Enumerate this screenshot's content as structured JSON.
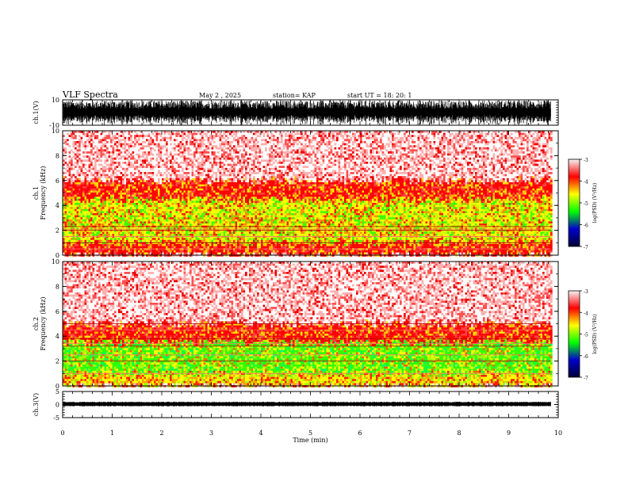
{
  "header": {
    "title": "VLF Spectra",
    "date": "May 2 , 2025",
    "station": "station= KAP",
    "start_ut": "start UT = 18: 20: 1"
  },
  "colorbar": {
    "label": "log(PSD) (V²/Hz)",
    "ticks": [
      "-3",
      "-4",
      "-5",
      "-6",
      "-7"
    ],
    "colors": [
      "#f4f4f4",
      "#ff0000",
      "#ffff00",
      "#00ff00",
      "#0000cc",
      "#000033"
    ]
  },
  "chart_data": [
    {
      "type": "line",
      "panel": "ch1-waveform",
      "ylabel": "ch.1(V)",
      "ylim": [
        -10,
        10
      ],
      "yticks": [
        "10",
        "-10"
      ],
      "x_range_min": [
        0,
        9.85
      ],
      "description_values": {
        "typical_amplitude_V": [
          -6,
          6
        ]
      }
    },
    {
      "type": "heatmap",
      "panel": "ch1-spectrogram",
      "ylabel": "ch.1 Frequency (kHz)",
      "ylim": [
        0,
        10
      ],
      "yticks": [
        "0",
        "2",
        "4",
        "6",
        "8",
        "10"
      ],
      "bands": [
        {
          "from_khz": 0,
          "to_khz": 1,
          "level": "red"
        },
        {
          "from_khz": 1,
          "to_khz": 4.5,
          "level": "yellow-green"
        },
        {
          "from_khz": 4.5,
          "to_khz": 6,
          "level": "red"
        },
        {
          "from_khz": 6,
          "to_khz": 10,
          "level": "light-red"
        }
      ],
      "lines_khz": [
        0.5,
        1.0,
        1.5,
        2.0,
        2.1,
        2.3
      ]
    },
    {
      "type": "heatmap",
      "panel": "ch2-spectrogram",
      "ylabel": "ch.2 Frequency (kHz)",
      "ylim": [
        0,
        10
      ],
      "yticks": [
        "0",
        "2",
        "4",
        "6",
        "8",
        "10"
      ],
      "bands": [
        {
          "from_khz": 0,
          "to_khz": 1,
          "level": "yellow"
        },
        {
          "from_khz": 1,
          "to_khz": 3.5,
          "level": "green"
        },
        {
          "from_khz": 3.5,
          "to_khz": 5,
          "level": "red"
        },
        {
          "from_khz": 5,
          "to_khz": 10,
          "level": "light-red"
        }
      ],
      "lines_khz": [
        1.0,
        2.0,
        2.5,
        3.2,
        3.4,
        3.8,
        4.5,
        5.0
      ]
    },
    {
      "type": "line",
      "panel": "ch3-waveform",
      "ylabel": "ch.3(V)",
      "ylim": [
        -5,
        5
      ],
      "yticks": [
        "5",
        "0",
        "-5"
      ],
      "description_values": {
        "typical_amplitude_V": [
          -0.8,
          0.8
        ],
        "offset_V": 0.2
      }
    }
  ],
  "x_axis": {
    "label": "Time (min)",
    "ticks": [
      "0",
      "1",
      "2",
      "3",
      "4",
      "5",
      "6",
      "7",
      "8",
      "9",
      "10"
    ],
    "xlim": [
      0,
      10
    ],
    "data_end": 9.85
  }
}
